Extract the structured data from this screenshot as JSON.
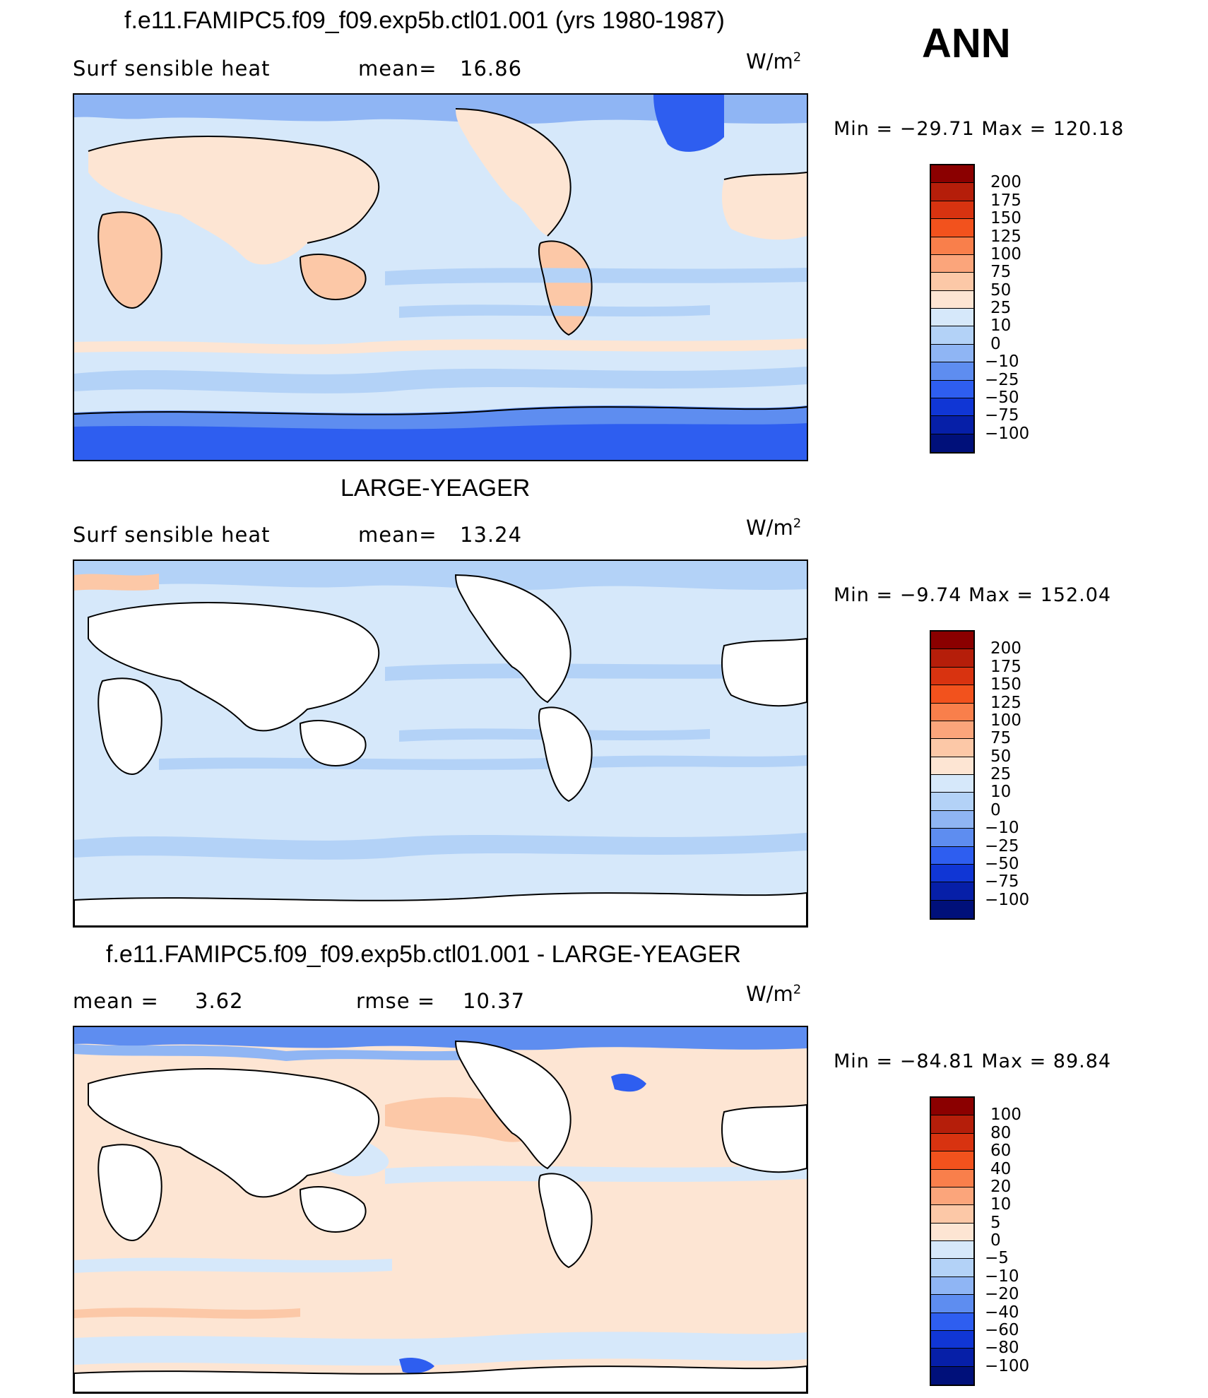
{
  "season": "ANN",
  "units_base": "W/m",
  "units_sup": "2",
  "panels": [
    {
      "title": "f.e11.FAMIPC5.f09_f09.exp5b.ctl01.001 (yrs 1980-1987)",
      "left_label": "Surf  sensible  heat",
      "stat_label": "mean=",
      "stat_value": "16.86",
      "minmax": "Min  =  −29.71  Max  =  120.18",
      "colorbar": {
        "labels": [
          "200",
          "175",
          "150",
          "125",
          "100",
          "75",
          "50",
          "25",
          "10",
          "0",
          "−10",
          "−25",
          "−50",
          "−75",
          "−100"
        ],
        "colors": [
          "#8b0000",
          "#b51e0a",
          "#d83310",
          "#f2521d",
          "#f97f4b",
          "#fba57b",
          "#fcc8a7",
          "#fde5d3",
          "#d6e8fa",
          "#b3d2f7",
          "#8fb5f4",
          "#5e8df0",
          "#2e5ef0",
          "#1036d5",
          "#061fa8",
          "#00107a"
        ]
      }
    },
    {
      "title": "LARGE-YEAGER",
      "left_label": "Surf  sensible  heat",
      "stat_label": "mean=",
      "stat_value": "13.24",
      "minmax": "Min  =   −9.74  Max  =  152.04",
      "colorbar": {
        "labels": [
          "200",
          "175",
          "150",
          "125",
          "100",
          "75",
          "50",
          "25",
          "10",
          "0",
          "−10",
          "−25",
          "−50",
          "−75",
          "−100"
        ],
        "colors": [
          "#8b0000",
          "#b51e0a",
          "#d83310",
          "#f2521d",
          "#f97f4b",
          "#fba57b",
          "#fcc8a7",
          "#fde5d3",
          "#d6e8fa",
          "#b3d2f7",
          "#8fb5f4",
          "#5e8df0",
          "#2e5ef0",
          "#1036d5",
          "#061fa8",
          "#00107a"
        ]
      }
    },
    {
      "title": "f.e11.FAMIPC5.f09_f09.exp5b.ctl01.001 - LARGE-YEAGER",
      "mean_label": "mean  =",
      "mean_value": "3.62",
      "rmse_label": "rmse  =",
      "rmse_value": "10.37",
      "minmax": "Min  =  −84.81  Max  =   89.84",
      "colorbar": {
        "labels": [
          "100",
          "80",
          "60",
          "40",
          "20",
          "10",
          "5",
          "0",
          "−5",
          "−10",
          "−20",
          "−40",
          "−60",
          "−80",
          "−100"
        ],
        "colors": [
          "#8b0000",
          "#b51e0a",
          "#d83310",
          "#f2521d",
          "#f97f4b",
          "#fba57b",
          "#fcc8a7",
          "#fde5d3",
          "#d6e8fa",
          "#b3d2f7",
          "#8fb5f4",
          "#5e8df0",
          "#2e5ef0",
          "#1036d5",
          "#061fa8",
          "#00107a"
        ]
      }
    }
  ]
}
